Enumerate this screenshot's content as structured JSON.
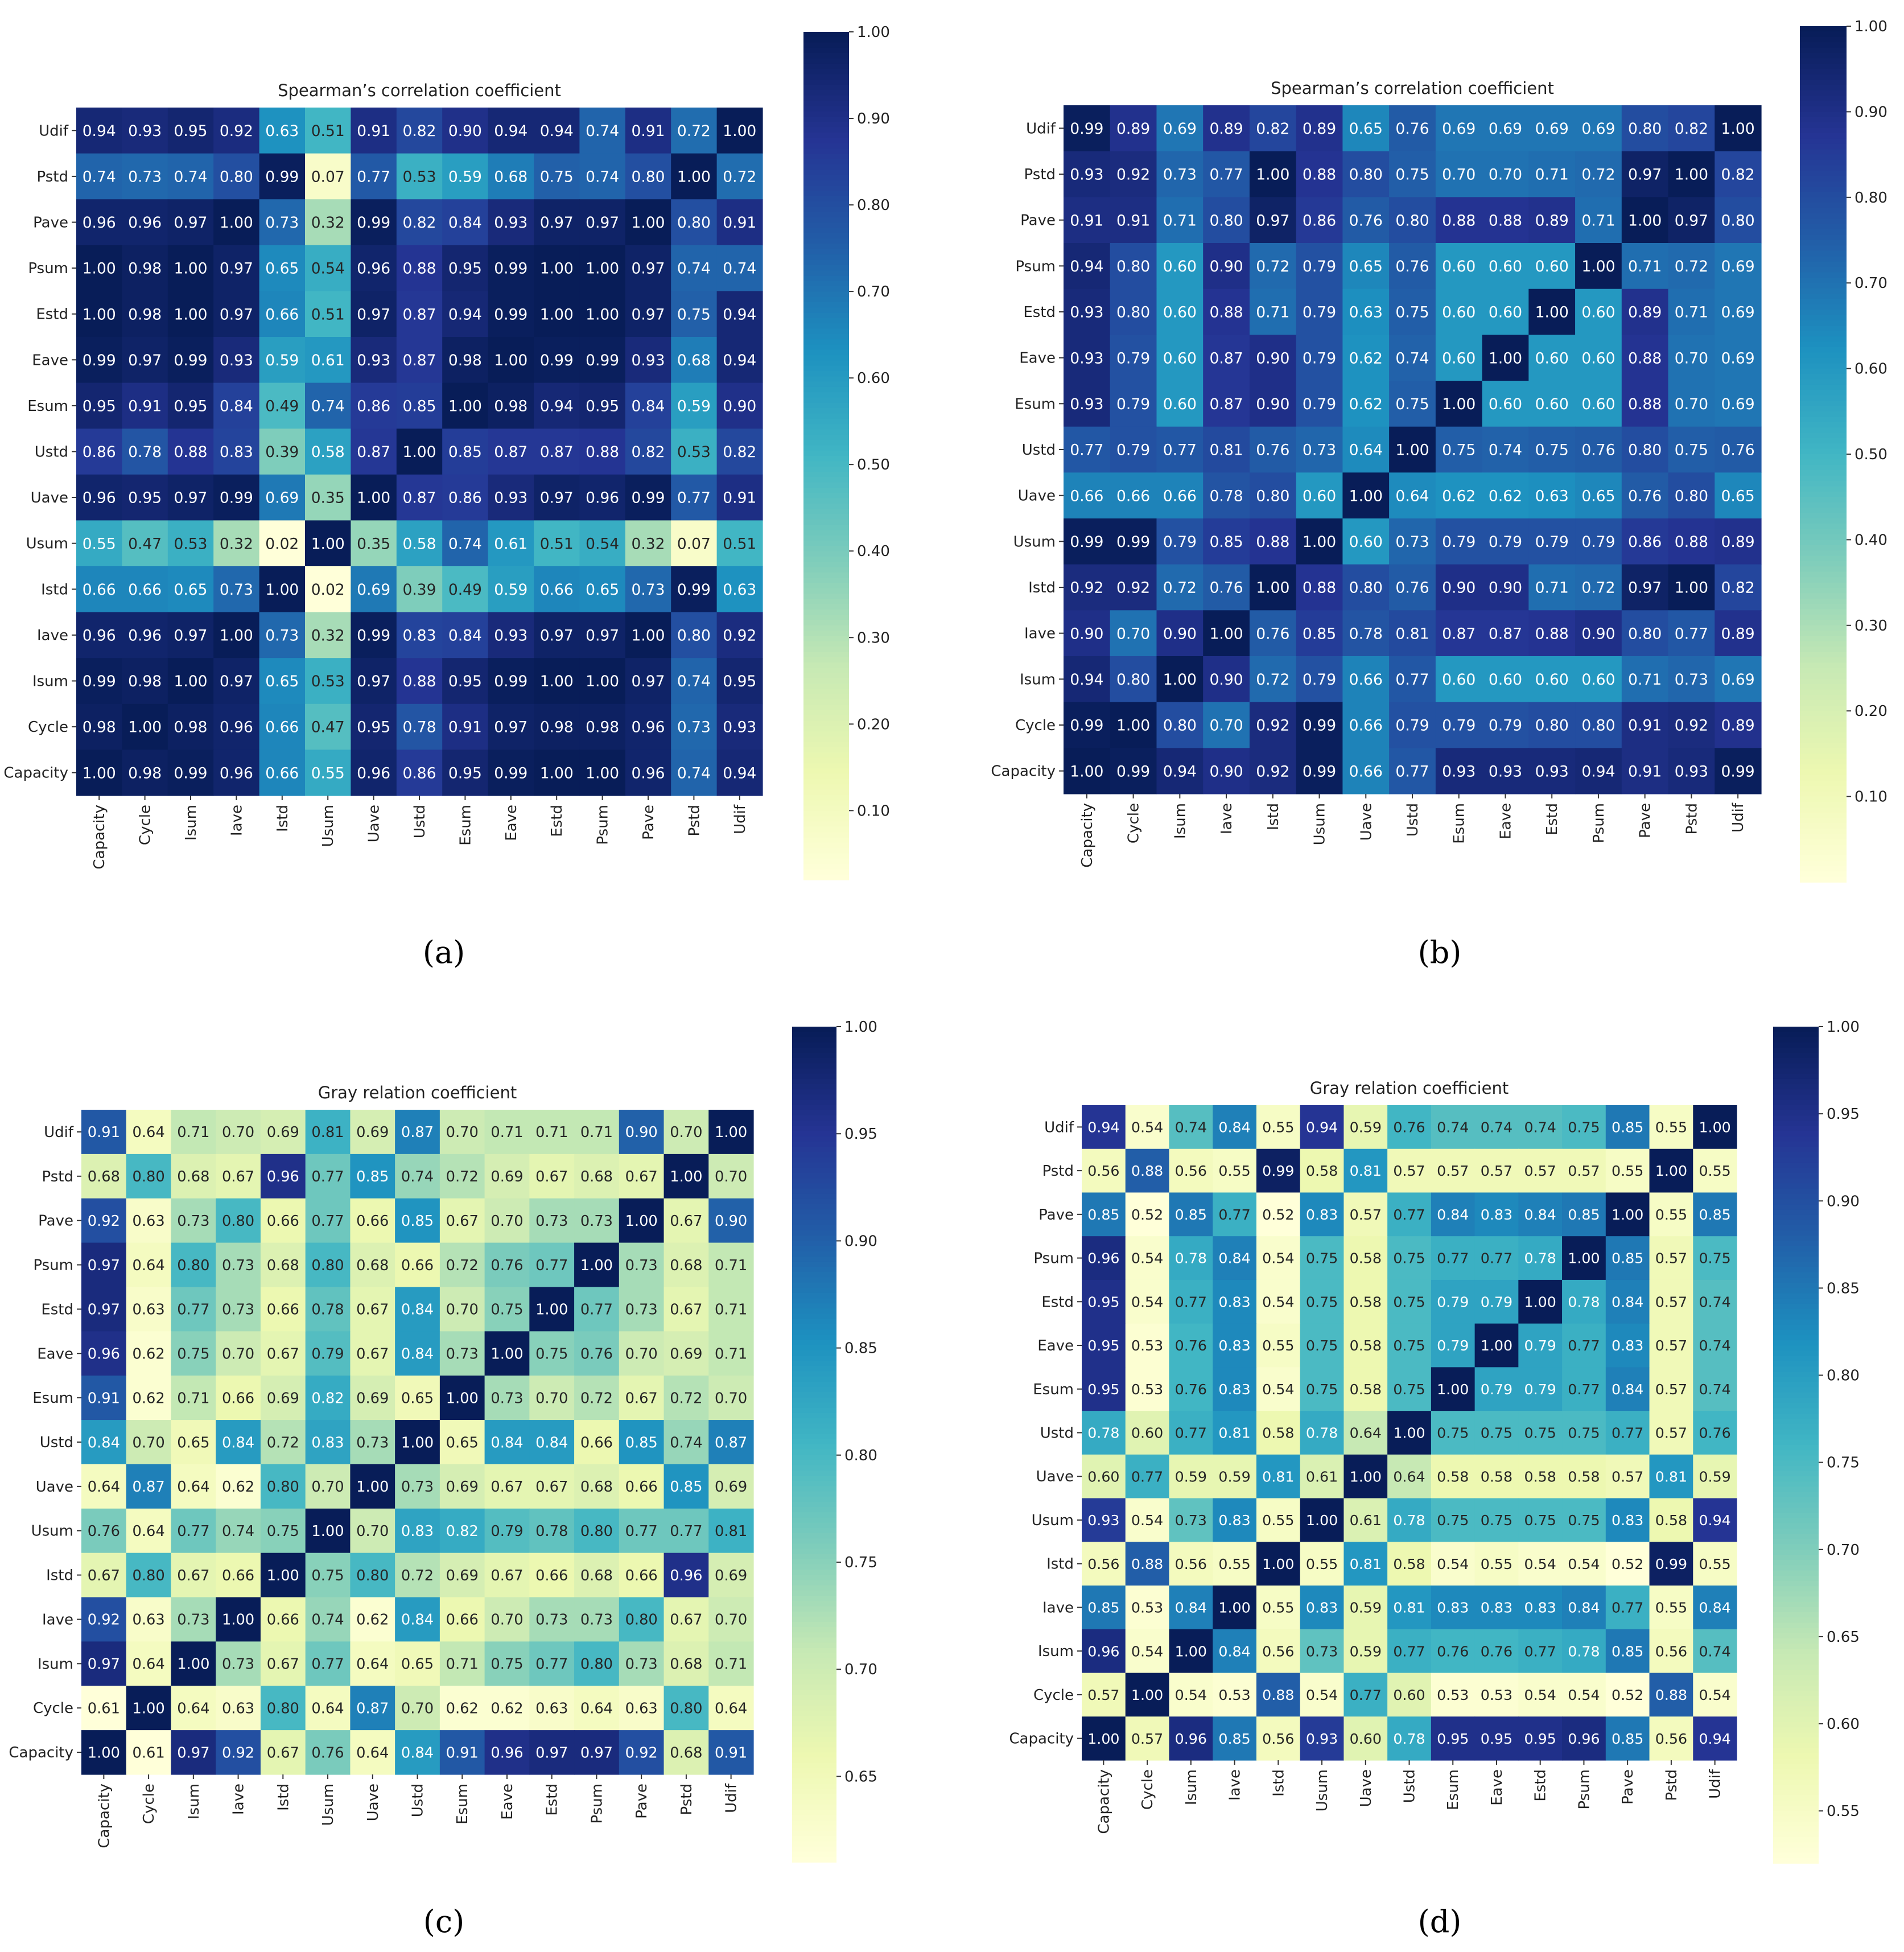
{
  "chart_data": [
    {
      "type": "heatmap",
      "panel_label": "(a)",
      "title": "Spearman’s correlation coefficient",
      "x_categories": [
        "Capacity",
        "Cycle",
        "Isum",
        "Iave",
        "Istd",
        "Usum",
        "Uave",
        "Ustd",
        "Esum",
        "Eave",
        "Estd",
        "Psum",
        "Pave",
        "Pstd",
        "Udif"
      ],
      "y_categories": [
        "Udif",
        "Pstd",
        "Pave",
        "Psum",
        "Estd",
        "Eave",
        "Esum",
        "Ustd",
        "Uave",
        "Usum",
        "Istd",
        "Iave",
        "Isum",
        "Cycle",
        "Capacity"
      ],
      "values": [
        [
          0.94,
          0.93,
          0.95,
          0.92,
          0.63,
          0.51,
          0.91,
          0.82,
          0.9,
          0.94,
          0.94,
          0.74,
          0.91,
          0.72,
          1.0
        ],
        [
          0.74,
          0.73,
          0.74,
          0.8,
          0.99,
          0.07,
          0.77,
          0.53,
          0.59,
          0.68,
          0.75,
          0.74,
          0.8,
          1.0,
          0.72
        ],
        [
          0.96,
          0.96,
          0.97,
          1.0,
          0.73,
          0.32,
          0.99,
          0.82,
          0.84,
          0.93,
          0.97,
          0.97,
          1.0,
          0.8,
          0.91
        ],
        [
          1.0,
          0.98,
          1.0,
          0.97,
          0.65,
          0.54,
          0.96,
          0.88,
          0.95,
          0.99,
          1.0,
          1.0,
          0.97,
          0.74,
          0.74
        ],
        [
          1.0,
          0.98,
          1.0,
          0.97,
          0.66,
          0.51,
          0.97,
          0.87,
          0.94,
          0.99,
          1.0,
          1.0,
          0.97,
          0.75,
          0.94
        ],
        [
          0.99,
          0.97,
          0.99,
          0.93,
          0.59,
          0.61,
          0.93,
          0.87,
          0.98,
          1.0,
          0.99,
          0.99,
          0.93,
          0.68,
          0.94
        ],
        [
          0.95,
          0.91,
          0.95,
          0.84,
          0.49,
          0.74,
          0.86,
          0.85,
          1.0,
          0.98,
          0.94,
          0.95,
          0.84,
          0.59,
          0.9
        ],
        [
          0.86,
          0.78,
          0.88,
          0.83,
          0.39,
          0.58,
          0.87,
          1.0,
          0.85,
          0.87,
          0.87,
          0.88,
          0.82,
          0.53,
          0.82
        ],
        [
          0.96,
          0.95,
          0.97,
          0.99,
          0.69,
          0.35,
          1.0,
          0.87,
          0.86,
          0.93,
          0.97,
          0.96,
          0.99,
          0.77,
          0.91
        ],
        [
          0.55,
          0.47,
          0.53,
          0.32,
          0.02,
          1.0,
          0.35,
          0.58,
          0.74,
          0.61,
          0.51,
          0.54,
          0.32,
          0.07,
          0.51
        ],
        [
          0.66,
          0.66,
          0.65,
          0.73,
          1.0,
          0.02,
          0.69,
          0.39,
          0.49,
          0.59,
          0.66,
          0.65,
          0.73,
          0.99,
          0.63
        ],
        [
          0.96,
          0.96,
          0.97,
          1.0,
          0.73,
          0.32,
          0.99,
          0.83,
          0.84,
          0.93,
          0.97,
          0.97,
          1.0,
          0.8,
          0.92
        ],
        [
          0.99,
          0.98,
          1.0,
          0.97,
          0.65,
          0.53,
          0.97,
          0.88,
          0.95,
          0.99,
          1.0,
          1.0,
          0.97,
          0.74,
          0.95
        ],
        [
          0.98,
          1.0,
          0.98,
          0.96,
          0.66,
          0.47,
          0.95,
          0.78,
          0.91,
          0.97,
          0.98,
          0.98,
          0.96,
          0.73,
          0.93
        ],
        [
          1.0,
          0.98,
          0.99,
          0.96,
          0.66,
          0.55,
          0.96,
          0.86,
          0.95,
          0.99,
          1.0,
          1.0,
          0.96,
          0.74,
          0.94
        ]
      ],
      "colorbar_ticks": [
        "0.10",
        "0.20",
        "0.30",
        "0.40",
        "0.50",
        "0.60",
        "0.70",
        "0.80",
        "0.90",
        "1.00"
      ],
      "vmin": 0.02,
      "vmax": 1.0,
      "colormap": "YlGnBu"
    },
    {
      "type": "heatmap",
      "panel_label": "(b)",
      "title": "Spearman’s correlation coefficient",
      "x_categories": [
        "Capacity",
        "Cycle",
        "Isum",
        "Iave",
        "Istd",
        "Usum",
        "Uave",
        "Ustd",
        "Esum",
        "Eave",
        "Estd",
        "Psum",
        "Pave",
        "Pstd",
        "Udif"
      ],
      "y_categories": [
        "Udif",
        "Pstd",
        "Pave",
        "Psum",
        "Estd",
        "Eave",
        "Esum",
        "Ustd",
        "Uave",
        "Usum",
        "Istd",
        "Iave",
        "Isum",
        "Cycle",
        "Capacity"
      ],
      "values": [
        [
          0.99,
          0.89,
          0.69,
          0.89,
          0.82,
          0.89,
          0.65,
          0.76,
          0.69,
          0.69,
          0.69,
          0.69,
          0.8,
          0.82,
          1.0
        ],
        [
          0.93,
          0.92,
          0.73,
          0.77,
          1.0,
          0.88,
          0.8,
          0.75,
          0.7,
          0.7,
          0.71,
          0.72,
          0.97,
          1.0,
          0.82
        ],
        [
          0.91,
          0.91,
          0.71,
          0.8,
          0.97,
          0.86,
          0.76,
          0.8,
          0.88,
          0.88,
          0.89,
          0.71,
          1.0,
          0.97,
          0.8
        ],
        [
          0.94,
          0.8,
          0.6,
          0.9,
          0.72,
          0.79,
          0.65,
          0.76,
          0.6,
          0.6,
          0.6,
          1.0,
          0.71,
          0.72,
          0.69
        ],
        [
          0.93,
          0.8,
          0.6,
          0.88,
          0.71,
          0.79,
          0.63,
          0.75,
          0.6,
          0.6,
          1.0,
          0.6,
          0.89,
          0.71,
          0.69
        ],
        [
          0.93,
          0.79,
          0.6,
          0.87,
          0.9,
          0.79,
          0.62,
          0.74,
          0.6,
          1.0,
          0.6,
          0.6,
          0.88,
          0.7,
          0.69
        ],
        [
          0.93,
          0.79,
          0.6,
          0.87,
          0.9,
          0.79,
          0.62,
          0.75,
          1.0,
          0.6,
          0.6,
          0.6,
          0.88,
          0.7,
          0.69
        ],
        [
          0.77,
          0.79,
          0.77,
          0.81,
          0.76,
          0.73,
          0.64,
          1.0,
          0.75,
          0.74,
          0.75,
          0.76,
          0.8,
          0.75,
          0.76
        ],
        [
          0.66,
          0.66,
          0.66,
          0.78,
          0.8,
          0.6,
          1.0,
          0.64,
          0.62,
          0.62,
          0.63,
          0.65,
          0.76,
          0.8,
          0.65
        ],
        [
          0.99,
          0.99,
          0.79,
          0.85,
          0.88,
          1.0,
          0.6,
          0.73,
          0.79,
          0.79,
          0.79,
          0.79,
          0.86,
          0.88,
          0.89
        ],
        [
          0.92,
          0.92,
          0.72,
          0.76,
          1.0,
          0.88,
          0.8,
          0.76,
          0.9,
          0.9,
          0.71,
          0.72,
          0.97,
          1.0,
          0.82
        ],
        [
          0.9,
          0.7,
          0.9,
          1.0,
          0.76,
          0.85,
          0.78,
          0.81,
          0.87,
          0.87,
          0.88,
          0.9,
          0.8,
          0.77,
          0.89
        ],
        [
          0.94,
          0.8,
          1.0,
          0.9,
          0.72,
          0.79,
          0.66,
          0.77,
          0.6,
          0.6,
          0.6,
          0.6,
          0.71,
          0.73,
          0.69
        ],
        [
          0.99,
          1.0,
          0.8,
          0.7,
          0.92,
          0.99,
          0.66,
          0.79,
          0.79,
          0.79,
          0.8,
          0.8,
          0.91,
          0.92,
          0.89
        ],
        [
          1.0,
          0.99,
          0.94,
          0.9,
          0.92,
          0.99,
          0.66,
          0.77,
          0.93,
          0.93,
          0.93,
          0.94,
          0.91,
          0.93,
          0.99
        ]
      ],
      "colorbar_ticks": [
        "0.10",
        "0.20",
        "0.30",
        "0.40",
        "0.50",
        "0.60",
        "0.70",
        "0.80",
        "0.90",
        "1.00"
      ],
      "vmin": 0.0,
      "vmax": 1.0,
      "colormap": "YlGnBu"
    },
    {
      "type": "heatmap",
      "panel_label": "(c)",
      "title": "Gray relation coefficient",
      "x_categories": [
        "Capacity",
        "Cycle",
        "Isum",
        "Iave",
        "Istd",
        "Usum",
        "Uave",
        "Ustd",
        "Esum",
        "Eave",
        "Estd",
        "Psum",
        "Pave",
        "Pstd",
        "Udif"
      ],
      "y_categories": [
        "Udif",
        "Pstd",
        "Pave",
        "Psum",
        "Estd",
        "Eave",
        "Esum",
        "Ustd",
        "Uave",
        "Usum",
        "Istd",
        "Iave",
        "Isum",
        "Cycle",
        "Capacity"
      ],
      "values": [
        [
          0.91,
          0.64,
          0.71,
          0.7,
          0.69,
          0.81,
          0.69,
          0.87,
          0.7,
          0.71,
          0.71,
          0.71,
          0.9,
          0.7,
          1.0
        ],
        [
          0.68,
          0.8,
          0.68,
          0.67,
          0.96,
          0.77,
          0.85,
          0.74,
          0.72,
          0.69,
          0.67,
          0.68,
          0.67,
          1.0,
          0.7
        ],
        [
          0.92,
          0.63,
          0.73,
          0.8,
          0.66,
          0.77,
          0.66,
          0.85,
          0.67,
          0.7,
          0.73,
          0.73,
          1.0,
          0.67,
          0.9
        ],
        [
          0.97,
          0.64,
          0.8,
          0.73,
          0.68,
          0.8,
          0.68,
          0.66,
          0.72,
          0.76,
          0.77,
          1.0,
          0.73,
          0.68,
          0.71
        ],
        [
          0.97,
          0.63,
          0.77,
          0.73,
          0.66,
          0.78,
          0.67,
          0.84,
          0.7,
          0.75,
          1.0,
          0.77,
          0.73,
          0.67,
          0.71
        ],
        [
          0.96,
          0.62,
          0.75,
          0.7,
          0.67,
          0.79,
          0.67,
          0.84,
          0.73,
          1.0,
          0.75,
          0.76,
          0.7,
          0.69,
          0.71
        ],
        [
          0.91,
          0.62,
          0.71,
          0.66,
          0.69,
          0.82,
          0.69,
          0.65,
          1.0,
          0.73,
          0.7,
          0.72,
          0.67,
          0.72,
          0.7
        ],
        [
          0.84,
          0.7,
          0.65,
          0.84,
          0.72,
          0.83,
          0.73,
          1.0,
          0.65,
          0.84,
          0.84,
          0.66,
          0.85,
          0.74,
          0.87
        ],
        [
          0.64,
          0.87,
          0.64,
          0.62,
          0.8,
          0.7,
          1.0,
          0.73,
          0.69,
          0.67,
          0.67,
          0.68,
          0.66,
          0.85,
          0.69
        ],
        [
          0.76,
          0.64,
          0.77,
          0.74,
          0.75,
          1.0,
          0.7,
          0.83,
          0.82,
          0.79,
          0.78,
          0.8,
          0.77,
          0.77,
          0.81
        ],
        [
          0.67,
          0.8,
          0.67,
          0.66,
          1.0,
          0.75,
          0.8,
          0.72,
          0.69,
          0.67,
          0.66,
          0.68,
          0.66,
          0.96,
          0.69
        ],
        [
          0.92,
          0.63,
          0.73,
          1.0,
          0.66,
          0.74,
          0.62,
          0.84,
          0.66,
          0.7,
          0.73,
          0.73,
          0.8,
          0.67,
          0.7
        ],
        [
          0.97,
          0.64,
          1.0,
          0.73,
          0.67,
          0.77,
          0.64,
          0.65,
          0.71,
          0.75,
          0.77,
          0.8,
          0.73,
          0.68,
          0.71
        ],
        [
          0.61,
          1.0,
          0.64,
          0.63,
          0.8,
          0.64,
          0.87,
          0.7,
          0.62,
          0.62,
          0.63,
          0.64,
          0.63,
          0.8,
          0.64
        ],
        [
          1.0,
          0.61,
          0.97,
          0.92,
          0.67,
          0.76,
          0.64,
          0.84,
          0.91,
          0.96,
          0.97,
          0.97,
          0.92,
          0.68,
          0.91
        ]
      ],
      "colorbar_ticks": [
        "0.65",
        "0.70",
        "0.75",
        "0.80",
        "0.85",
        "0.90",
        "0.95",
        "1.00"
      ],
      "vmin": 0.61,
      "vmax": 1.0,
      "colormap": "YlGnBu"
    },
    {
      "type": "heatmap",
      "panel_label": "(d)",
      "title": "Gray relation coefficient",
      "x_categories": [
        "Capacity",
        "Cycle",
        "Isum",
        "Iave",
        "Istd",
        "Usum",
        "Uave",
        "Ustd",
        "Esum",
        "Eave",
        "Estd",
        "Psum",
        "Pave",
        "Pstd",
        "Udif"
      ],
      "y_categories": [
        "Udif",
        "Pstd",
        "Pave",
        "Psum",
        "Estd",
        "Eave",
        "Esum",
        "Ustd",
        "Uave",
        "Usum",
        "Istd",
        "Iave",
        "Isum",
        "Cycle",
        "Capacity"
      ],
      "values": [
        [
          0.94,
          0.54,
          0.74,
          0.84,
          0.55,
          0.94,
          0.59,
          0.76,
          0.74,
          0.74,
          0.74,
          0.75,
          0.85,
          0.55,
          1.0
        ],
        [
          0.56,
          0.88,
          0.56,
          0.55,
          0.99,
          0.58,
          0.81,
          0.57,
          0.57,
          0.57,
          0.57,
          0.57,
          0.55,
          1.0,
          0.55
        ],
        [
          0.85,
          0.52,
          0.85,
          0.77,
          0.52,
          0.83,
          0.57,
          0.77,
          0.84,
          0.83,
          0.84,
          0.85,
          1.0,
          0.55,
          0.85
        ],
        [
          0.96,
          0.54,
          0.78,
          0.84,
          0.54,
          0.75,
          0.58,
          0.75,
          0.77,
          0.77,
          0.78,
          1.0,
          0.85,
          0.57,
          0.75
        ],
        [
          0.95,
          0.54,
          0.77,
          0.83,
          0.54,
          0.75,
          0.58,
          0.75,
          0.79,
          0.79,
          1.0,
          0.78,
          0.84,
          0.57,
          0.74
        ],
        [
          0.95,
          0.53,
          0.76,
          0.83,
          0.55,
          0.75,
          0.58,
          0.75,
          0.79,
          1.0,
          0.79,
          0.77,
          0.83,
          0.57,
          0.74
        ],
        [
          0.95,
          0.53,
          0.76,
          0.83,
          0.54,
          0.75,
          0.58,
          0.75,
          1.0,
          0.79,
          0.79,
          0.77,
          0.84,
          0.57,
          0.74
        ],
        [
          0.78,
          0.6,
          0.77,
          0.81,
          0.58,
          0.78,
          0.64,
          1.0,
          0.75,
          0.75,
          0.75,
          0.75,
          0.77,
          0.57,
          0.76
        ],
        [
          0.6,
          0.77,
          0.59,
          0.59,
          0.81,
          0.61,
          1.0,
          0.64,
          0.58,
          0.58,
          0.58,
          0.58,
          0.57,
          0.81,
          0.59
        ],
        [
          0.93,
          0.54,
          0.73,
          0.83,
          0.55,
          1.0,
          0.61,
          0.78,
          0.75,
          0.75,
          0.75,
          0.75,
          0.83,
          0.58,
          0.94
        ],
        [
          0.56,
          0.88,
          0.56,
          0.55,
          1.0,
          0.55,
          0.81,
          0.58,
          0.54,
          0.55,
          0.54,
          0.54,
          0.52,
          0.99,
          0.55
        ],
        [
          0.85,
          0.53,
          0.84,
          1.0,
          0.55,
          0.83,
          0.59,
          0.81,
          0.83,
          0.83,
          0.83,
          0.84,
          0.77,
          0.55,
          0.84
        ],
        [
          0.96,
          0.54,
          1.0,
          0.84,
          0.56,
          0.73,
          0.59,
          0.77,
          0.76,
          0.76,
          0.77,
          0.78,
          0.85,
          0.56,
          0.74
        ],
        [
          0.57,
          1.0,
          0.54,
          0.53,
          0.88,
          0.54,
          0.77,
          0.6,
          0.53,
          0.53,
          0.54,
          0.54,
          0.52,
          0.88,
          0.54
        ],
        [
          1.0,
          0.57,
          0.96,
          0.85,
          0.56,
          0.93,
          0.6,
          0.78,
          0.95,
          0.95,
          0.95,
          0.96,
          0.85,
          0.56,
          0.94
        ]
      ],
      "colorbar_ticks": [
        "0.55",
        "0.60",
        "0.65",
        "0.70",
        "0.75",
        "0.80",
        "0.85",
        "0.90",
        "0.95",
        "1.00"
      ],
      "vmin": 0.52,
      "vmax": 1.0,
      "colormap": "YlGnBu"
    }
  ]
}
